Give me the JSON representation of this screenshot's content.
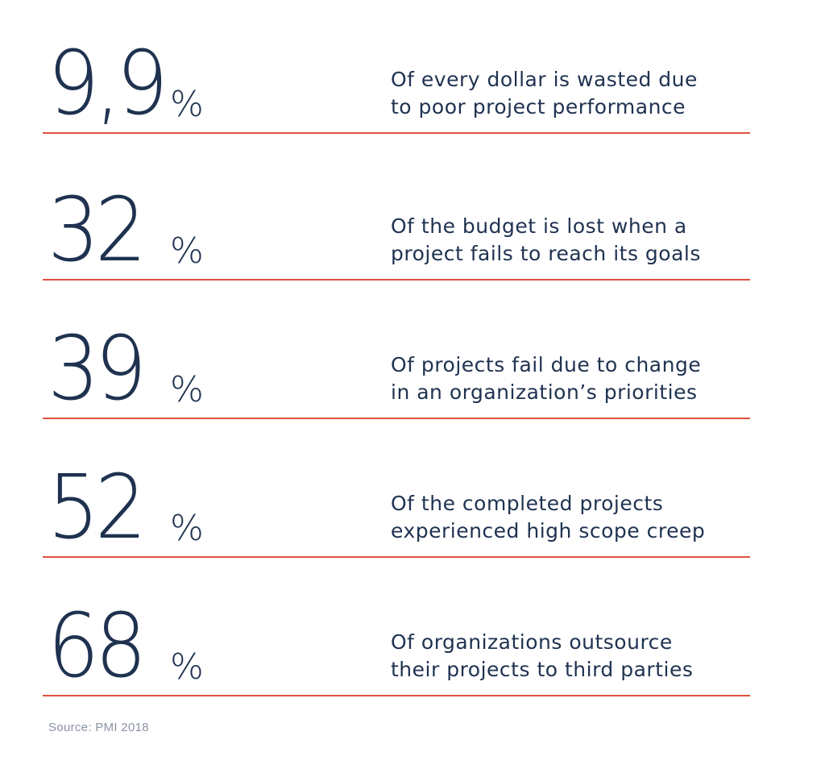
{
  "stats": [
    {
      "number": "9,9",
      "percent_sign": "%",
      "description_line1": "Of every dollar is wasted due",
      "description_line2": "to poor project performance"
    },
    {
      "number": "32",
      "percent_sign": "%",
      "description_line1": "Of the budget is lost when a",
      "description_line2": "project fails to reach its goals"
    },
    {
      "number": "39",
      "percent_sign": "%",
      "description_line1": "Of projects fail due to change",
      "description_line2": "in an organization’s priorities"
    },
    {
      "number": "52",
      "percent_sign": "%",
      "description_line1": "Of the completed projects",
      "description_line2": "experienced high scope creep"
    },
    {
      "number": "68",
      "percent_sign": "%",
      "description_line1": "Of organizations outsource",
      "description_line2": "their projects to third parties"
    }
  ],
  "source": "Source: PMI 2018",
  "colors": {
    "text": "#1f3250",
    "divider": "#e0513e",
    "source_text": "#8a93a3"
  }
}
